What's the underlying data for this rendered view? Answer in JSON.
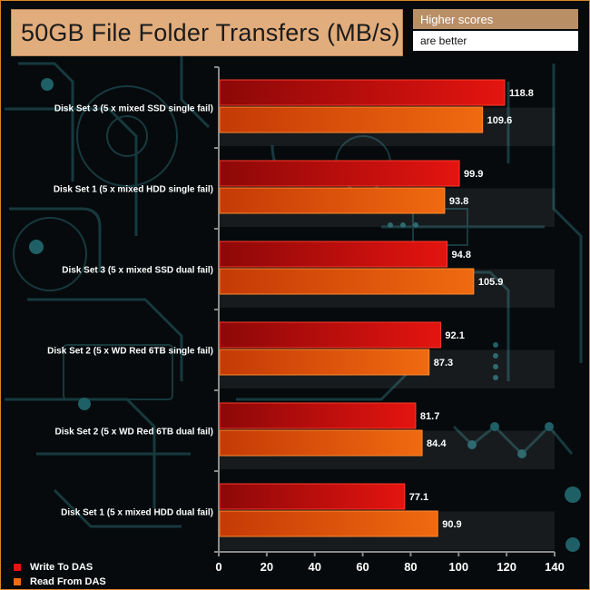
{
  "title": "50GB File Folder Transfers (MB/s)",
  "note": {
    "top": "Higher scores",
    "bottom": "are better"
  },
  "colors": {
    "background": "#060a0c",
    "circuit": "#17393e",
    "axis": "#8a8a8a",
    "title_box": "#e2ad7c",
    "series_write": "#e41410",
    "series_read": "#f06a10"
  },
  "chart_data": {
    "type": "bar",
    "orientation": "horizontal",
    "title": "50GB File Folder Transfers (MB/s)",
    "categories": [
      "Disk Set 3 (5 x mixed SSD single fail)",
      "Disk Set 1 (5 x mixed HDD single fail)",
      "Disk Set 3 (5 x mixed SSD dual fail)",
      "Disk Set 2 (5 x WD Red 6TB single fail)",
      "Disk Set 2 (5 x WD Red 6TB dual fail)",
      "Disk Set 1 (5 x mixed HDD dual fail)"
    ],
    "series": [
      {
        "name": "Write To DAS",
        "values": [
          118.8,
          99.9,
          94.8,
          92.1,
          81.7,
          77.1
        ]
      },
      {
        "name": "Read From DAS",
        "values": [
          109.6,
          93.8,
          105.9,
          87.3,
          84.4,
          90.9
        ]
      }
    ],
    "value_labels": {
      "Write To DAS": [
        "118.8",
        "99.9",
        "94.8",
        "92.1",
        "81.7",
        "77.1"
      ],
      "Read From DAS": [
        "109.6",
        "93.8",
        "105.9",
        "87.3",
        "84.4",
        "90.9"
      ]
    },
    "xlim": [
      0,
      140
    ],
    "xticks": [
      "0",
      "20",
      "40",
      "60",
      "80",
      "100",
      "120",
      "140"
    ],
    "legend_position": "bottom-left",
    "grid": false
  }
}
